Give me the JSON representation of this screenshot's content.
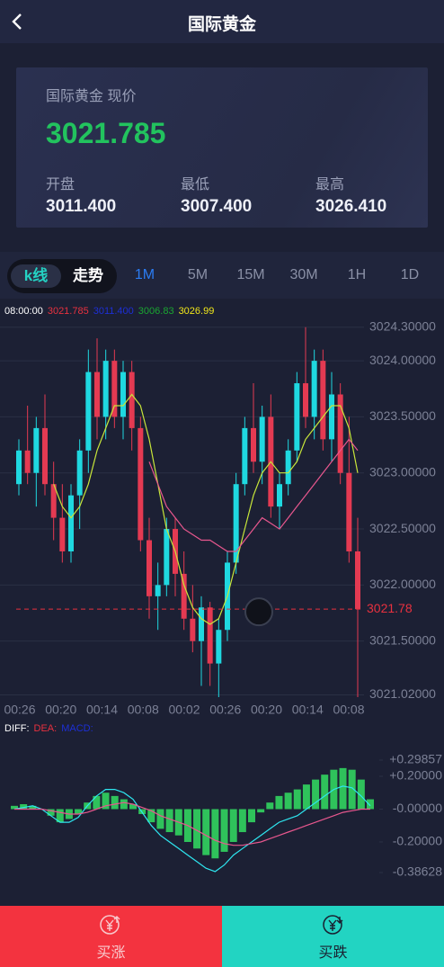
{
  "header": {
    "title": "国际黄金"
  },
  "quote": {
    "label": "国际黄金 现价",
    "price": "3021.785",
    "stats": [
      {
        "label": "开盘",
        "value": "3011.400"
      },
      {
        "label": "最低",
        "value": "3007.400"
      },
      {
        "label": "最高",
        "value": "3026.410"
      }
    ]
  },
  "tabs": {
    "modes": [
      "k线",
      "走势"
    ],
    "periods": [
      "1M",
      "5M",
      "15M",
      "30M",
      "1H",
      "1D"
    ]
  },
  "chart_data": [
    {
      "type": "candlestick",
      "legend": [
        {
          "text": "08:00:00",
          "color": "#ffffff"
        },
        {
          "text": "3021.785",
          "color": "#e8313f"
        },
        {
          "text": "3011.400",
          "color": "#1d2fd6"
        },
        {
          "text": "3006.83",
          "color": "#1aa531"
        },
        {
          "text": "3026.99",
          "color": "#f0e61a"
        }
      ],
      "up_color": "#1fd8e0",
      "down_color": "#e43a52",
      "open": [
        3022.9,
        3023.2,
        3023.0,
        3023.4,
        3022.9,
        3022.6,
        3022.3,
        3022.8,
        3023.2,
        3023.9,
        3023.5,
        3024.0,
        3023.5,
        3023.9,
        3023.4,
        3022.4,
        3021.9,
        3022.0,
        3022.5,
        3022.1,
        3021.7,
        3021.5,
        3021.8,
        3021.3,
        3021.6,
        3022.2,
        3022.9,
        3023.4,
        3023.1,
        3023.5,
        3022.7,
        3022.9,
        3023.2,
        3023.8,
        3023.5,
        3024.0,
        3023.3,
        3023.7,
        3023.0,
        3022.3
      ],
      "high": [
        3023.3,
        3023.6,
        3023.5,
        3023.7,
        3023.1,
        3022.9,
        3022.9,
        3023.3,
        3024.1,
        3024.2,
        3024.1,
        3024.1,
        3024.0,
        3024.0,
        3023.5,
        3022.6,
        3022.2,
        3022.6,
        3022.6,
        3022.3,
        3022.0,
        3021.9,
        3021.85,
        3021.7,
        3022.3,
        3023.0,
        3023.5,
        3023.8,
        3023.6,
        3023.7,
        3023.0,
        3023.3,
        3023.9,
        3024.3,
        3024.1,
        3024.1,
        3023.9,
        3023.8,
        3023.5,
        3022.6
      ],
      "low": [
        3022.8,
        3022.9,
        3022.7,
        3022.8,
        3022.4,
        3022.2,
        3022.2,
        3022.5,
        3023.0,
        3023.3,
        3023.3,
        3023.4,
        3023.3,
        3023.2,
        3022.3,
        3021.7,
        3021.6,
        3021.9,
        3021.9,
        3021.6,
        3021.4,
        3021.1,
        3021.1,
        3021.0,
        3021.5,
        3022.1,
        3022.8,
        3023.0,
        3022.9,
        3022.6,
        3022.5,
        3022.8,
        3023.1,
        3023.4,
        3023.3,
        3023.2,
        3023.1,
        3022.9,
        3022.2,
        3021.0
      ],
      "close": [
        3023.2,
        3023.0,
        3023.4,
        3022.9,
        3022.6,
        3022.3,
        3022.8,
        3023.2,
        3023.9,
        3023.5,
        3024.0,
        3023.5,
        3023.9,
        3023.4,
        3022.4,
        3021.9,
        3022.0,
        3022.5,
        3022.1,
        3021.7,
        3021.5,
        3021.8,
        3021.3,
        3021.6,
        3022.2,
        3022.9,
        3023.4,
        3023.1,
        3023.5,
        3022.7,
        3022.9,
        3023.2,
        3023.8,
        3023.5,
        3024.0,
        3023.3,
        3023.7,
        3023.0,
        3022.3,
        3021.785
      ],
      "lines": [
        {
          "color": "#c8e63a",
          "values": [
            null,
            null,
            null,
            null,
            3022.9,
            3022.7,
            3022.6,
            3022.7,
            3022.9,
            3023.2,
            3023.4,
            3023.6,
            3023.6,
            3023.7,
            3023.6,
            3023.3,
            3022.9,
            3022.5,
            3022.3,
            3022.0,
            3021.8,
            3021.7,
            3021.65,
            3021.7,
            3021.9,
            3022.2,
            3022.5,
            3022.8,
            3023.0,
            3023.1,
            3023.0,
            3023.0,
            3023.1,
            3023.3,
            3023.4,
            3023.5,
            3023.6,
            3023.6,
            3023.4,
            3023.0
          ]
        },
        {
          "color": "#e8578e",
          "values": [
            null,
            null,
            null,
            null,
            null,
            null,
            null,
            null,
            null,
            null,
            null,
            null,
            null,
            null,
            null,
            3023.1,
            3022.9,
            3022.7,
            3022.6,
            3022.5,
            3022.45,
            3022.4,
            3022.4,
            3022.35,
            3022.3,
            3022.3,
            3022.4,
            3022.5,
            3022.6,
            3022.55,
            3022.5,
            3022.6,
            3022.7,
            3022.8,
            3022.9,
            3023.0,
            3023.1,
            3023.2,
            3023.3,
            3023.2
          ]
        }
      ],
      "last_price": {
        "value": 3021.785,
        "label": "3021.78"
      },
      "ylim": [
        3021.0,
        3024.37
      ],
      "yticks": [
        {
          "value": 3024.3,
          "label": "3024.30000"
        },
        {
          "value": 3024.0,
          "label": "3024.00000"
        },
        {
          "value": 3023.5,
          "label": "3023.50000"
        },
        {
          "value": 3023.0,
          "label": "3023.00000"
        },
        {
          "value": 3022.5,
          "label": "3022.50000"
        },
        {
          "value": 3022.0,
          "label": "3022.00000"
        },
        {
          "value": 3021.5,
          "label": "3021.50000"
        },
        {
          "value": 3021.02,
          "label": "3021.02000"
        }
      ],
      "x_labels": [
        "00:26",
        "00:20",
        "00:14",
        "00:08",
        "00:02",
        "00:26",
        "00:20",
        "00:14",
        "00:08"
      ],
      "grid": true
    },
    {
      "type": "macd",
      "legend": [
        {
          "text": "DIFF:",
          "color": "#ffffff"
        },
        {
          "text": "DEA:",
          "color": "#e8313f"
        },
        {
          "text": "MACD:",
          "color": "#1d2fd6"
        }
      ],
      "bar_color": "#2fc25b",
      "values": [
        0.02,
        0.03,
        0.02,
        0.0,
        -0.04,
        -0.08,
        -0.06,
        -0.03,
        0.04,
        0.08,
        0.1,
        0.08,
        0.06,
        0.03,
        -0.03,
        -0.08,
        -0.12,
        -0.14,
        -0.16,
        -0.2,
        -0.24,
        -0.28,
        -0.3,
        -0.26,
        -0.2,
        -0.14,
        -0.08,
        -0.02,
        0.04,
        0.08,
        0.1,
        0.12,
        0.15,
        0.18,
        0.21,
        0.24,
        0.25,
        0.24,
        0.18,
        0.06
      ],
      "lines": [
        {
          "color": "#2ee6f0",
          "values": [
            0.0,
            0.01,
            0.02,
            0.0,
            -0.04,
            -0.08,
            -0.08,
            -0.05,
            0.02,
            0.08,
            0.12,
            0.12,
            0.1,
            0.06,
            -0.02,
            -0.1,
            -0.16,
            -0.2,
            -0.24,
            -0.28,
            -0.32,
            -0.36,
            -0.38,
            -0.34,
            -0.28,
            -0.24,
            -0.2,
            -0.16,
            -0.12,
            -0.08,
            -0.06,
            -0.04,
            0.0,
            0.04,
            0.08,
            0.12,
            0.14,
            0.13,
            0.08,
            0.02
          ]
        },
        {
          "color": "#e8578e",
          "values": [
            0.0,
            0.0,
            0.0,
            0.0,
            -0.01,
            -0.02,
            -0.03,
            -0.03,
            -0.02,
            0.0,
            0.02,
            0.03,
            0.04,
            0.03,
            0.01,
            -0.01,
            -0.04,
            -0.06,
            -0.08,
            -0.1,
            -0.13,
            -0.16,
            -0.19,
            -0.21,
            -0.22,
            -0.22,
            -0.21,
            -0.2,
            -0.18,
            -0.16,
            -0.14,
            -0.12,
            -0.1,
            -0.08,
            -0.06,
            -0.04,
            -0.02,
            -0.01,
            0.0,
            0.0
          ]
        }
      ],
      "ylim": [
        -0.38628,
        0.29857
      ],
      "yticks": [
        {
          "value": 0.29857,
          "label": "+0.29857"
        },
        {
          "value": 0.2,
          "label": "+0.20000"
        },
        {
          "value": 0,
          "label": "-0.00000"
        },
        {
          "value": -0.2,
          "label": "-0.20000"
        },
        {
          "value": -0.38628,
          "label": "-0.38628"
        }
      ]
    }
  ],
  "actions": {
    "buy_up": "买涨",
    "buy_down": "买跌"
  }
}
